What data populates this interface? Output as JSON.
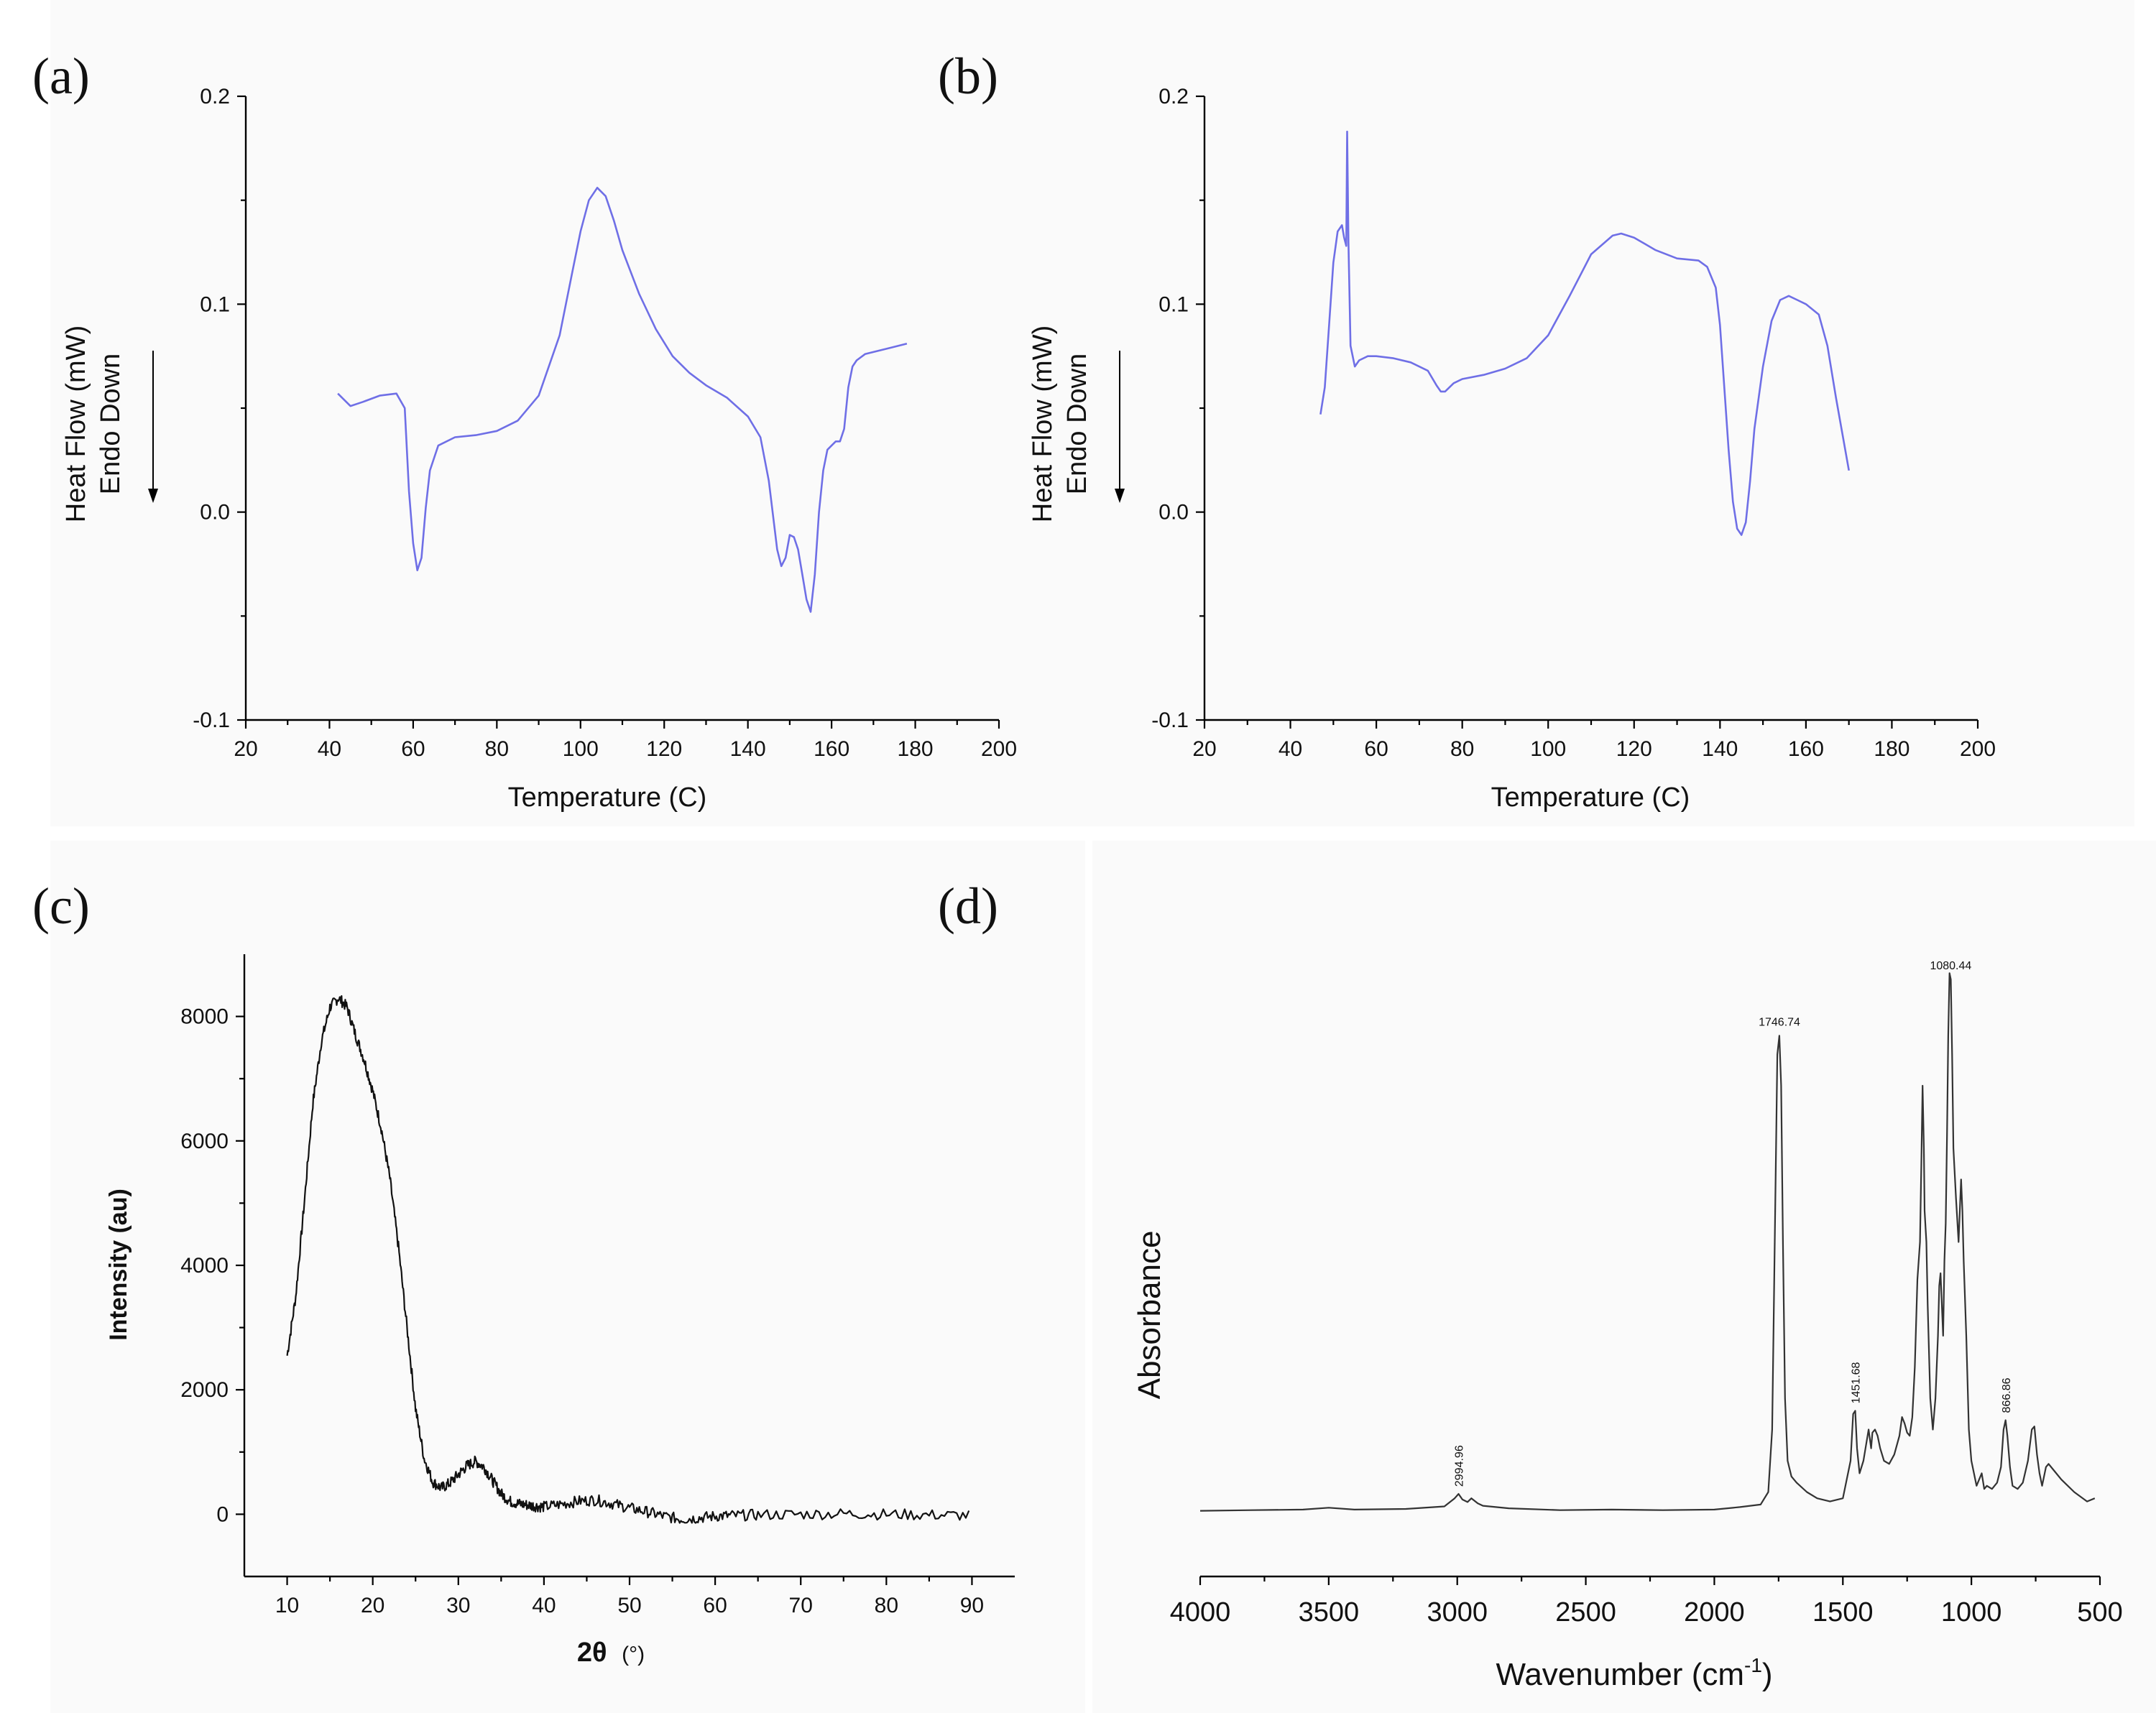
{
  "chart_data": [
    {
      "panel": "(a)",
      "type": "line",
      "xlabel": "Temperature (C)",
      "ylabel": [
        "Heat Flow (mW)",
        "Endo Down"
      ],
      "xlim": [
        20,
        200
      ],
      "ylim": [
        -0.1,
        0.2
      ],
      "xticks": [
        "20",
        "40",
        "60",
        "80",
        "100",
        "120",
        "140",
        "160",
        "180",
        "200"
      ],
      "yticks": [
        "-0.1",
        "0.0",
        "0.1",
        "0.2"
      ],
      "x": [
        42,
        45,
        48,
        52,
        56,
        58,
        59,
        60,
        61,
        62,
        63,
        64,
        66,
        70,
        75,
        80,
        85,
        90,
        95,
        98,
        100,
        102,
        104,
        106,
        108,
        110,
        114,
        118,
        122,
        126,
        130,
        135,
        140,
        143,
        145,
        147,
        148,
        149,
        150,
        151,
        152,
        153,
        154,
        155,
        156,
        157,
        158,
        159,
        160,
        161,
        162,
        163,
        164,
        165,
        166,
        168,
        170,
        174,
        178
      ],
      "y": [
        0.057,
        0.051,
        0.053,
        0.056,
        0.057,
        0.05,
        0.01,
        -0.015,
        -0.028,
        -0.022,
        0.002,
        0.02,
        0.032,
        0.036,
        0.037,
        0.039,
        0.044,
        0.056,
        0.085,
        0.115,
        0.135,
        0.15,
        0.156,
        0.152,
        0.14,
        0.126,
        0.105,
        0.088,
        0.075,
        0.067,
        0.061,
        0.055,
        0.046,
        0.036,
        0.015,
        -0.018,
        -0.026,
        -0.022,
        -0.011,
        -0.012,
        -0.018,
        -0.03,
        -0.042,
        -0.048,
        -0.03,
        0.0,
        0.02,
        0.03,
        0.032,
        0.034,
        0.034,
        0.04,
        0.06,
        0.07,
        0.073,
        0.076,
        0.077,
        0.079,
        0.081
      ]
    },
    {
      "panel": "(b)",
      "type": "line",
      "xlabel": "Temperature (C)",
      "ylabel": [
        "Heat Flow (mW)",
        "Endo Down"
      ],
      "xlim": [
        20,
        200
      ],
      "ylim": [
        -0.1,
        0.2
      ],
      "xticks": [
        "20",
        "40",
        "60",
        "80",
        "100",
        "120",
        "140",
        "160",
        "180",
        "200"
      ],
      "yticks": [
        "-0.1",
        "0.0",
        "0.1",
        "0.2"
      ],
      "x": [
        47,
        48,
        49,
        50,
        51,
        52,
        52.5,
        53,
        53.2,
        53.5,
        54,
        55,
        56,
        58,
        60,
        64,
        68,
        72,
        74,
        75,
        76,
        78,
        80,
        85,
        90,
        95,
        100,
        105,
        110,
        115,
        117,
        120,
        125,
        130,
        135,
        137,
        139,
        140,
        141,
        142,
        143,
        144,
        145,
        146,
        147,
        148,
        150,
        152,
        154,
        156,
        158,
        160,
        163,
        165,
        167,
        170
      ],
      "y": [
        0.047,
        0.06,
        0.09,
        0.12,
        0.135,
        0.138,
        0.132,
        0.128,
        0.183,
        0.13,
        0.08,
        0.07,
        0.073,
        0.075,
        0.075,
        0.074,
        0.072,
        0.068,
        0.061,
        0.058,
        0.058,
        0.062,
        0.064,
        0.066,
        0.069,
        0.074,
        0.085,
        0.104,
        0.124,
        0.133,
        0.134,
        0.132,
        0.126,
        0.122,
        0.121,
        0.118,
        0.108,
        0.09,
        0.06,
        0.03,
        0.005,
        -0.008,
        -0.011,
        -0.005,
        0.015,
        0.04,
        0.07,
        0.092,
        0.102,
        0.104,
        0.102,
        0.1,
        0.095,
        0.08,
        0.055,
        0.02
      ]
    },
    {
      "panel": "(c)",
      "type": "line",
      "xlabel": "2θ",
      "xlabel_unit": "(°)",
      "ylabel": "Intensity (au)",
      "xlim": [
        5,
        95
      ],
      "ylim": [
        -1000,
        9000
      ],
      "xticks": [
        "10",
        "20",
        "30",
        "40",
        "50",
        "60",
        "70",
        "80",
        "90"
      ],
      "yticks": [
        "0",
        "2000",
        "4000",
        "6000",
        "8000"
      ],
      "x": [
        10,
        11,
        12,
        13,
        14,
        15,
        16,
        17,
        18,
        19,
        20,
        21,
        22,
        23,
        24,
        25,
        26,
        27,
        28,
        29,
        30,
        31,
        32,
        33,
        34,
        35,
        36,
        37,
        38,
        39,
        40,
        42,
        44,
        46,
        48,
        50,
        52,
        54,
        56,
        58,
        60,
        62,
        65,
        70,
        75,
        80,
        85,
        90
      ],
      "y": [
        2550,
        3500,
        5000,
        6600,
        7600,
        8150,
        8300,
        8150,
        7700,
        7300,
        6800,
        6200,
        5400,
        4300,
        3000,
        1700,
        900,
        520,
        420,
        500,
        640,
        780,
        850,
        760,
        540,
        330,
        210,
        170,
        150,
        130,
        120,
        160,
        210,
        230,
        170,
        100,
        40,
        -30,
        -80,
        -60,
        -30,
        -20,
        -10,
        0,
        10,
        0,
        -10,
        -20
      ]
    },
    {
      "panel": "(d)",
      "type": "line",
      "xlabel": "Wavenumber (cm",
      "xlabel_sup": "-1",
      "xlabel_close": ")",
      "ylabel": "Absorbance",
      "xlim": [
        4000,
        500
      ],
      "ylim": [
        0,
        1
      ],
      "xticks": [
        "4000",
        "3500",
        "3000",
        "2500",
        "2000",
        "1500",
        "1000",
        "500"
      ],
      "peak_labels": [
        "2994.96",
        "1746.74",
        "1451.68",
        "1080.44",
        "866.86"
      ],
      "x": [
        4000,
        3800,
        3600,
        3500,
        3400,
        3200,
        3050,
        3010,
        2995,
        2980,
        2960,
        2945,
        2920,
        2900,
        2800,
        2600,
        2400,
        2200,
        2000,
        1900,
        1820,
        1790,
        1775,
        1765,
        1755,
        1747,
        1740,
        1733,
        1725,
        1715,
        1700,
        1680,
        1640,
        1600,
        1550,
        1500,
        1470,
        1460,
        1452,
        1445,
        1435,
        1420,
        1400,
        1390,
        1385,
        1375,
        1365,
        1355,
        1340,
        1320,
        1300,
        1280,
        1270,
        1260,
        1250,
        1240,
        1230,
        1220,
        1210,
        1200,
        1195,
        1190,
        1185,
        1182,
        1175,
        1170,
        1160,
        1150,
        1140,
        1130,
        1125,
        1120,
        1115,
        1110,
        1105,
        1100,
        1095,
        1090,
        1085,
        1080,
        1075,
        1070,
        1060,
        1050,
        1045,
        1040,
        1035,
        1030,
        1020,
        1010,
        1000,
        990,
        980,
        970,
        960,
        950,
        940,
        920,
        900,
        885,
        875,
        867,
        860,
        850,
        840,
        820,
        800,
        780,
        765,
        755,
        745,
        735,
        725,
        710,
        700,
        680,
        650,
        600,
        550,
        520
      ],
      "y": [
        0.02,
        0.021,
        0.022,
        0.025,
        0.022,
        0.023,
        0.027,
        0.04,
        0.047,
        0.038,
        0.034,
        0.04,
        0.032,
        0.028,
        0.024,
        0.021,
        0.022,
        0.021,
        0.022,
        0.026,
        0.03,
        0.05,
        0.15,
        0.45,
        0.75,
        0.78,
        0.7,
        0.45,
        0.2,
        0.1,
        0.075,
        0.065,
        0.05,
        0.04,
        0.035,
        0.04,
        0.1,
        0.175,
        0.18,
        0.12,
        0.08,
        0.1,
        0.15,
        0.12,
        0.145,
        0.15,
        0.14,
        0.12,
        0.1,
        0.095,
        0.11,
        0.14,
        0.17,
        0.16,
        0.145,
        0.14,
        0.17,
        0.25,
        0.39,
        0.45,
        0.57,
        0.7,
        0.6,
        0.5,
        0.45,
        0.35,
        0.2,
        0.15,
        0.2,
        0.3,
        0.38,
        0.4,
        0.35,
        0.3,
        0.42,
        0.48,
        0.62,
        0.78,
        0.88,
        0.87,
        0.75,
        0.6,
        0.52,
        0.45,
        0.5,
        0.55,
        0.5,
        0.42,
        0.3,
        0.15,
        0.1,
        0.08,
        0.06,
        0.07,
        0.08,
        0.055,
        0.06,
        0.055,
        0.065,
        0.09,
        0.15,
        0.165,
        0.14,
        0.09,
        0.06,
        0.055,
        0.065,
        0.1,
        0.15,
        0.155,
        0.11,
        0.08,
        0.06,
        0.09,
        0.095,
        0.085,
        0.07,
        0.05,
        0.035,
        0.04
      ]
    }
  ]
}
